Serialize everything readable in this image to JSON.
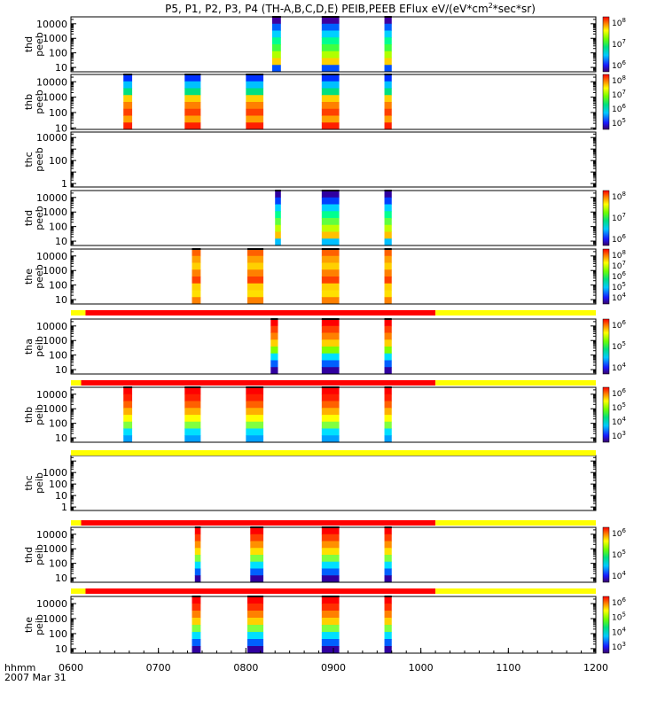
{
  "title": "P5, P1, P2, P3, P4 (TH-A,B,C,D,E) PEIB,PEEB EFlux eV/(eV*cm^2*sec*sr)",
  "title_parts": {
    "main": "P5, P1, P2, P3, P4 (TH-A,B,C,D,E) PEIB,PEEB EFlux eV/(eV*cm",
    "sup": "2",
    "tail": "*sec*sr)"
  },
  "xaxis": {
    "label": "hhmm",
    "date": "2007 Mar 31",
    "range": [
      "0600",
      "1200"
    ],
    "ticks": [
      "0600",
      "0700",
      "0800",
      "0900",
      "1000",
      "1100",
      "1200"
    ]
  },
  "colors": {
    "status_red": "#ff0000",
    "status_yellow": "#ffff00"
  },
  "chart_data": [
    {
      "type": "heatmap",
      "probe": "thd",
      "ylabel": [
        "thd",
        "peeb"
      ],
      "scale": "log",
      "ylim": [
        5,
        30000
      ],
      "yticks": [
        "10",
        "100",
        "1000",
        "10000"
      ],
      "colorbar": [
        "10^6",
        "10^7",
        "10^8"
      ],
      "bursts": [
        [
          "0818",
          "0824"
        ],
        [
          "0852",
          "0904"
        ],
        [
          "0935",
          "0940"
        ]
      ]
    },
    {
      "type": "heatmap",
      "probe": "thb",
      "ylabel": [
        "thb",
        "peeb"
      ],
      "scale": "log",
      "ylim": [
        8,
        30000
      ],
      "yticks": [
        "10",
        "100",
        "1000",
        "10000"
      ],
      "colorbar": [
        "10^5",
        "10^6",
        "10^7",
        "10^8"
      ],
      "bursts": [
        [
          "0636",
          "0642"
        ],
        [
          "0718",
          "0729"
        ],
        [
          "0800",
          "0812"
        ],
        [
          "0852",
          "0904"
        ],
        [
          "0935",
          "0940"
        ]
      ]
    },
    {
      "type": "heatmap",
      "probe": "thc",
      "ylabel": [
        "thc",
        "peeb"
      ],
      "scale": "log",
      "ylim": [
        0.5,
        30000
      ],
      "yticks": [
        "1",
        "100",
        "10000"
      ],
      "colorbar": [],
      "bursts": []
    },
    {
      "type": "heatmap",
      "probe": "thd",
      "ylabel": [
        "thd",
        "peeb"
      ],
      "scale": "log",
      "ylim": [
        5,
        30000
      ],
      "yticks": [
        "10",
        "100",
        "1000",
        "10000"
      ],
      "colorbar": [
        "10^6",
        "10^7",
        "10^8"
      ],
      "bursts": [
        [
          "0820",
          "0824"
        ],
        [
          "0852",
          "0904"
        ],
        [
          "0935",
          "0940"
        ]
      ]
    },
    {
      "type": "heatmap",
      "probe": "the",
      "ylabel": [
        "the",
        "peeb"
      ],
      "scale": "log",
      "ylim": [
        5,
        30000
      ],
      "yticks": [
        "10",
        "100",
        "1000",
        "10000"
      ],
      "colorbar": [
        "10^4",
        "10^5",
        "10^6",
        "10^7",
        "10^8"
      ],
      "bursts": [
        [
          "0723",
          "0729"
        ],
        [
          "0801",
          "0812"
        ],
        [
          "0852",
          "0904"
        ],
        [
          "0935",
          "0940"
        ]
      ]
    },
    {
      "type": "heatmap",
      "probe": "tha",
      "ylabel": [
        "tha",
        "peib"
      ],
      "scale": "log",
      "ylim": [
        5,
        30000
      ],
      "yticks": [
        "10",
        "100",
        "1000",
        "10000"
      ],
      "colorbar": [
        "10^4",
        "10^5",
        "10^6"
      ],
      "bursts": [
        [
          "0817",
          "0822"
        ],
        [
          "0852",
          "0904"
        ],
        [
          "0935",
          "0940"
        ]
      ]
    },
    {
      "type": "heatmap",
      "probe": "thb",
      "ylabel": [
        "thb",
        "peib"
      ],
      "scale": "log",
      "ylim": [
        5,
        30000
      ],
      "yticks": [
        "10",
        "100",
        "1000",
        "10000"
      ],
      "colorbar": [
        "10^3",
        "10^4",
        "10^5",
        "10^6"
      ],
      "bursts": [
        [
          "0636",
          "0642"
        ],
        [
          "0718",
          "0729"
        ],
        [
          "0800",
          "0812"
        ],
        [
          "0852",
          "0904"
        ],
        [
          "0935",
          "0940"
        ]
      ]
    },
    {
      "type": "heatmap",
      "probe": "thc",
      "ylabel": [
        "thc",
        "peib"
      ],
      "scale": "log",
      "ylim": [
        0.5,
        30000
      ],
      "yticks": [
        "1",
        "10",
        "100",
        "1000"
      ],
      "colorbar": [],
      "bursts": []
    },
    {
      "type": "heatmap",
      "probe": "thd",
      "ylabel": [
        "thd",
        "peib"
      ],
      "scale": "log",
      "ylim": [
        5,
        30000
      ],
      "yticks": [
        "10",
        "100",
        "1000",
        "10000"
      ],
      "colorbar": [
        "10^4",
        "10^5",
        "10^6"
      ],
      "bursts": [
        [
          "0725",
          "0729"
        ],
        [
          "0803",
          "0812"
        ],
        [
          "0852",
          "0904"
        ],
        [
          "0935",
          "0940"
        ]
      ]
    },
    {
      "type": "heatmap",
      "probe": "the",
      "ylabel": [
        "the",
        "peib"
      ],
      "scale": "log",
      "ylim": [
        5,
        30000
      ],
      "yticks": [
        "10",
        "100",
        "1000",
        "10000"
      ],
      "colorbar": [
        "10^3",
        "10^4",
        "10^5",
        "10^6"
      ],
      "bursts": [
        [
          "0723",
          "0729"
        ],
        [
          "0801",
          "0812"
        ],
        [
          "0852",
          "0904"
        ],
        [
          "0935",
          "0940"
        ]
      ]
    }
  ],
  "status_bars": [
    {
      "after_panel": 4,
      "segments": [
        {
          "from": "0600",
          "to": "0610",
          "color": "yellow"
        },
        {
          "from": "0610",
          "to": "1010",
          "color": "red"
        },
        {
          "from": "1010",
          "to": "1200",
          "color": "yellow"
        }
      ]
    },
    {
      "after_panel": 5,
      "segments": [
        {
          "from": "0600",
          "to": "0607",
          "color": "yellow"
        },
        {
          "from": "0607",
          "to": "1010",
          "color": "red"
        },
        {
          "from": "1010",
          "to": "1200",
          "color": "yellow"
        }
      ]
    },
    {
      "after_panel": 6,
      "segments": [
        {
          "from": "0600",
          "to": "1200",
          "color": "yellow"
        }
      ]
    },
    {
      "after_panel": 7,
      "segments": [
        {
          "from": "0600",
          "to": "0607",
          "color": "yellow"
        },
        {
          "from": "0607",
          "to": "1010",
          "color": "red"
        },
        {
          "from": "1010",
          "to": "1200",
          "color": "yellow"
        }
      ]
    },
    {
      "after_panel": 8,
      "segments": [
        {
          "from": "0600",
          "to": "0610",
          "color": "yellow"
        },
        {
          "from": "0610",
          "to": "1010",
          "color": "red"
        },
        {
          "from": "1010",
          "to": "1200",
          "color": "yellow"
        }
      ]
    }
  ]
}
